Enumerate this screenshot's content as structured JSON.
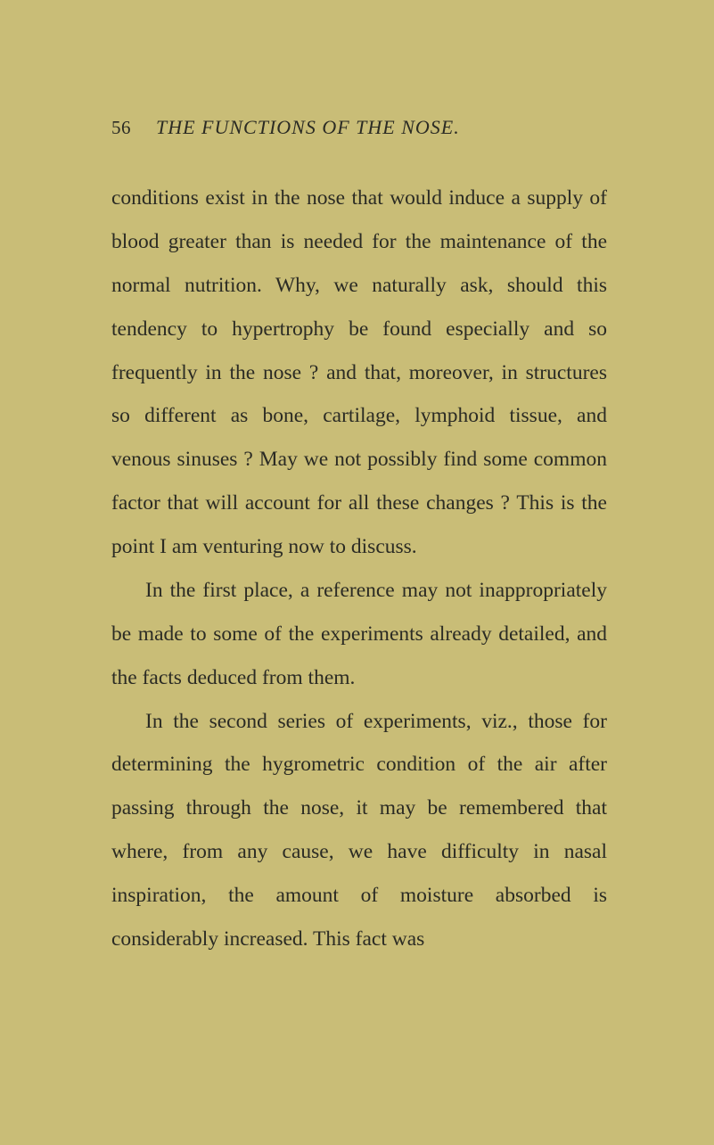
{
  "page": {
    "number": "56",
    "running_title": "THE FUNCTIONS OF THE NOSE.",
    "background_color": "#c9bd77",
    "text_color": "#2b2b24",
    "body_fontsize": 23.5,
    "header_fontsize": 22,
    "line_height": 2.08,
    "paragraphs": [
      "conditions exist in the nose that would induce a supply of blood greater than is needed for the maintenance of the normal nutrition. Why, we naturally ask, should this tendency to hypertrophy be found especially and so frequently in the nose ? and that, moreover, in structures so different as bone, cartilage, lymphoid tissue, and venous sinuses ? May we not possibly find some common factor that will account for all these changes ? This is the point I am venturing now to discuss.",
      "In the first place, a reference may not inappropriately be made to some of the experiments already detailed, and the facts deduced from them.",
      "In the second series of experiments, viz., those for determining the hygrometric con­dition of the air after passing through the nose, it may be remembered that where, from any cause, we have difficulty in nasal inspiration, the amount of moisture absorbed is considerably increased. This fact was"
    ]
  }
}
